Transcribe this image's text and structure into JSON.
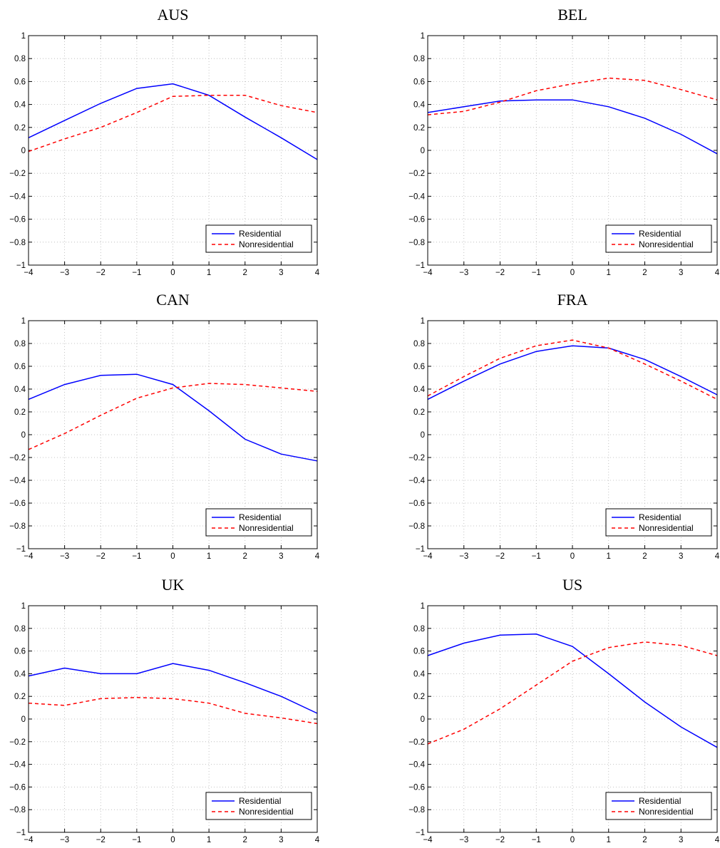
{
  "chart_data": [
    {
      "type": "line",
      "title": "AUS",
      "x": [
        -4,
        -3,
        -2,
        -1,
        0,
        1,
        2,
        3,
        4
      ],
      "xlim": [
        -4,
        4
      ],
      "ylim": [
        -1,
        1
      ],
      "xticks": [
        "−4",
        "−3",
        "−2",
        "−1",
        "0",
        "1",
        "2",
        "3",
        "4"
      ],
      "yticks": [
        "−1",
        "−0.8",
        "−0.6",
        "−0.4",
        "−0.2",
        "0",
        "0.2",
        "0.4",
        "0.6",
        "0.8",
        "1"
      ],
      "grid": true,
      "legend": "bottom-right",
      "series": [
        {
          "name": "Residential",
          "color": "#0000ff",
          "style": "solid",
          "values": [
            0.11,
            0.26,
            0.41,
            0.54,
            0.58,
            0.48,
            0.29,
            0.11,
            -0.08
          ]
        },
        {
          "name": "Nonresidential",
          "color": "#ff0000",
          "style": "dashed",
          "values": [
            -0.01,
            0.1,
            0.2,
            0.33,
            0.47,
            0.48,
            0.48,
            0.39,
            0.33
          ]
        }
      ]
    },
    {
      "type": "line",
      "title": "BEL",
      "x": [
        -4,
        -3,
        -2,
        -1,
        0,
        1,
        2,
        3,
        4
      ],
      "xlim": [
        -4,
        4
      ],
      "ylim": [
        -1,
        1
      ],
      "xticks": [
        "−4",
        "−3",
        "−2",
        "−1",
        "0",
        "1",
        "2",
        "3",
        "4"
      ],
      "yticks": [
        "−1",
        "−0.8",
        "−0.6",
        "−0.4",
        "−0.2",
        "0",
        "0.2",
        "0.4",
        "0.6",
        "0.8",
        "1"
      ],
      "grid": true,
      "legend": "bottom-right",
      "series": [
        {
          "name": "Residential",
          "color": "#0000ff",
          "style": "solid",
          "values": [
            0.33,
            0.38,
            0.43,
            0.44,
            0.44,
            0.38,
            0.28,
            0.14,
            -0.03
          ]
        },
        {
          "name": "Nonresidential",
          "color": "#ff0000",
          "style": "dashed",
          "values": [
            0.31,
            0.34,
            0.42,
            0.52,
            0.58,
            0.63,
            0.61,
            0.53,
            0.44
          ]
        }
      ]
    },
    {
      "type": "line",
      "title": "CAN",
      "x": [
        -4,
        -3,
        -2,
        -1,
        0,
        1,
        2,
        3,
        4
      ],
      "xlim": [
        -4,
        4
      ],
      "ylim": [
        -1,
        1
      ],
      "xticks": [
        "−4",
        "−3",
        "−2",
        "−1",
        "0",
        "1",
        "2",
        "3",
        "4"
      ],
      "yticks": [
        "−1",
        "−0.8",
        "−0.6",
        "−0.4",
        "−0.2",
        "0",
        "0.2",
        "0.4",
        "0.6",
        "0.8",
        "1"
      ],
      "grid": true,
      "legend": "bottom-right",
      "series": [
        {
          "name": "Residential",
          "color": "#0000ff",
          "style": "solid",
          "values": [
            0.31,
            0.44,
            0.52,
            0.53,
            0.44,
            0.21,
            -0.04,
            -0.17,
            -0.23
          ]
        },
        {
          "name": "Nonresidential",
          "color": "#ff0000",
          "style": "dashed",
          "values": [
            -0.13,
            0.01,
            0.17,
            0.32,
            0.41,
            0.45,
            0.44,
            0.41,
            0.38
          ]
        }
      ]
    },
    {
      "type": "line",
      "title": "FRA",
      "x": [
        -4,
        -3,
        -2,
        -1,
        0,
        1,
        2,
        3,
        4
      ],
      "xlim": [
        -4,
        4
      ],
      "ylim": [
        -1,
        1
      ],
      "xticks": [
        "−4",
        "−3",
        "−2",
        "−1",
        "0",
        "1",
        "2",
        "3",
        "4"
      ],
      "yticks": [
        "−1",
        "−0.8",
        "−0.6",
        "−0.4",
        "−0.2",
        "0",
        "0.2",
        "0.4",
        "0.6",
        "0.8",
        "1"
      ],
      "grid": true,
      "legend": "bottom-right",
      "series": [
        {
          "name": "Residential",
          "color": "#0000ff",
          "style": "solid",
          "values": [
            0.31,
            0.47,
            0.62,
            0.73,
            0.78,
            0.76,
            0.66,
            0.51,
            0.35
          ]
        },
        {
          "name": "Nonresidential",
          "color": "#ff0000",
          "style": "dashed",
          "values": [
            0.34,
            0.51,
            0.67,
            0.78,
            0.83,
            0.76,
            0.62,
            0.47,
            0.31
          ]
        }
      ]
    },
    {
      "type": "line",
      "title": "UK",
      "x": [
        -4,
        -3,
        -2,
        -1,
        0,
        1,
        2,
        3,
        4
      ],
      "xlim": [
        -4,
        4
      ],
      "ylim": [
        -1,
        1
      ],
      "xticks": [
        "−4",
        "−3",
        "−2",
        "−1",
        "0",
        "1",
        "2",
        "3",
        "4"
      ],
      "yticks": [
        "−1",
        "−0.8",
        "−0.6",
        "−0.4",
        "−0.2",
        "0",
        "0.2",
        "0.4",
        "0.6",
        "0.8",
        "1"
      ],
      "grid": true,
      "legend": "bottom-right",
      "series": [
        {
          "name": "Residential",
          "color": "#0000ff",
          "style": "solid",
          "values": [
            0.38,
            0.45,
            0.4,
            0.4,
            0.49,
            0.43,
            0.32,
            0.2,
            0.05
          ]
        },
        {
          "name": "Nonresidential",
          "color": "#ff0000",
          "style": "dashed",
          "values": [
            0.14,
            0.12,
            0.18,
            0.19,
            0.18,
            0.14,
            0.05,
            0.01,
            -0.04
          ]
        }
      ]
    },
    {
      "type": "line",
      "title": "US",
      "x": [
        -4,
        -3,
        -2,
        -1,
        0,
        1,
        2,
        3,
        4
      ],
      "xlim": [
        -4,
        4
      ],
      "ylim": [
        -1,
        1
      ],
      "xticks": [
        "−4",
        "−3",
        "−2",
        "−1",
        "0",
        "1",
        "2",
        "3",
        "4"
      ],
      "yticks": [
        "−1",
        "−0.8",
        "−0.6",
        "−0.4",
        "−0.2",
        "0",
        "0.2",
        "0.4",
        "0.6",
        "0.8",
        "1"
      ],
      "grid": true,
      "legend": "bottom-right",
      "series": [
        {
          "name": "Residential",
          "color": "#0000ff",
          "style": "solid",
          "values": [
            0.56,
            0.67,
            0.74,
            0.75,
            0.64,
            0.4,
            0.15,
            -0.07,
            -0.25
          ]
        },
        {
          "name": "Nonresidential",
          "color": "#ff0000",
          "style": "dashed",
          "values": [
            -0.22,
            -0.09,
            0.09,
            0.3,
            0.51,
            0.63,
            0.68,
            0.65,
            0.56
          ]
        }
      ]
    }
  ]
}
